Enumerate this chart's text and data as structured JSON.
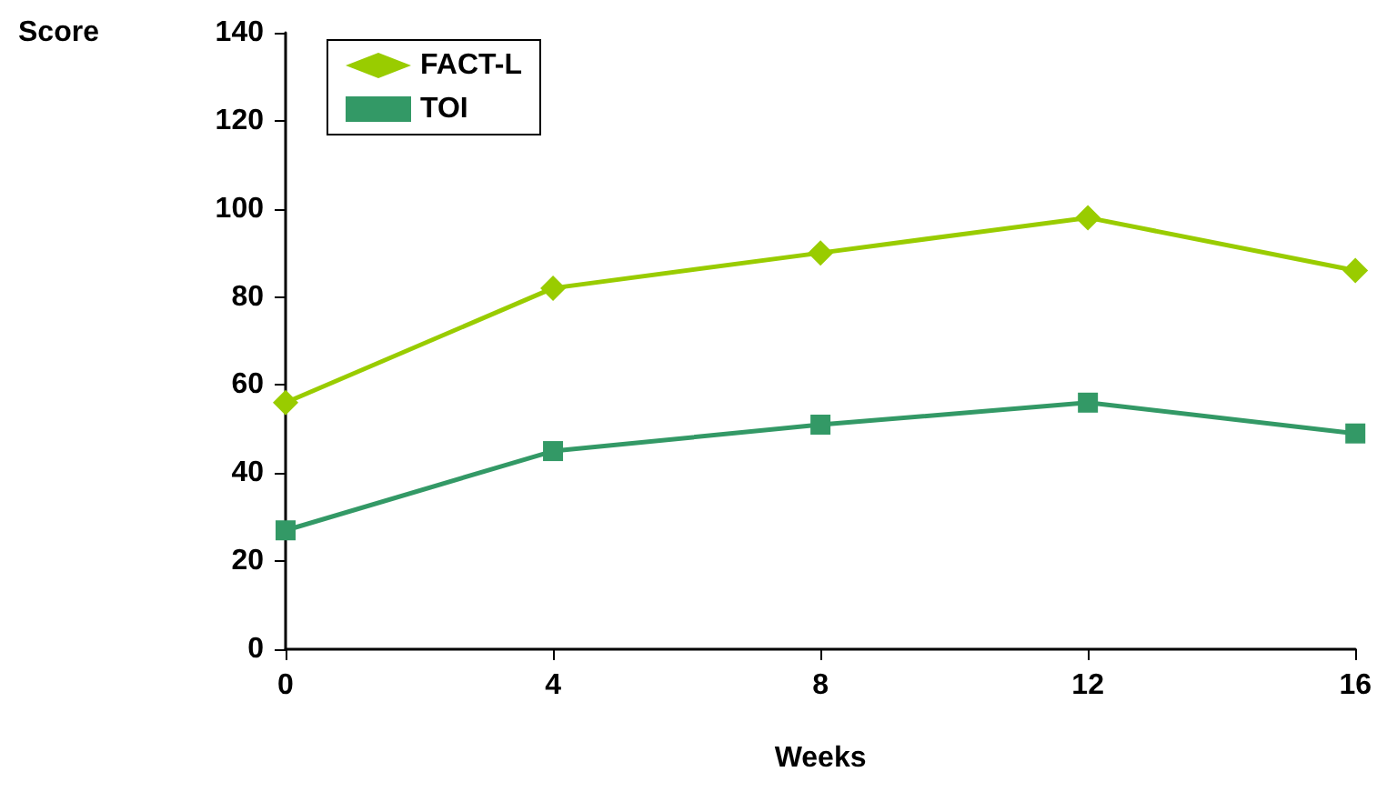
{
  "chart_data": {
    "type": "line",
    "xlabel": "Weeks",
    "ylabel": "Score",
    "x": [
      0,
      4,
      8,
      12,
      16
    ],
    "series": [
      {
        "name": "FACT-L",
        "color": "#99cc00",
        "marker": "diamond",
        "values": [
          56,
          82,
          90,
          98,
          86
        ]
      },
      {
        "name": "TOI",
        "color": "#339966",
        "marker": "square",
        "values": [
          27,
          45,
          51,
          56,
          49
        ]
      }
    ],
    "xlim": [
      0,
      16
    ],
    "xticks": [
      0,
      4,
      8,
      12,
      16
    ],
    "ylim": [
      0,
      140
    ],
    "yticks": [
      0,
      20,
      40,
      60,
      80,
      100,
      120,
      140
    ],
    "grid": false,
    "legend": "top left",
    "line_style": "solid"
  }
}
